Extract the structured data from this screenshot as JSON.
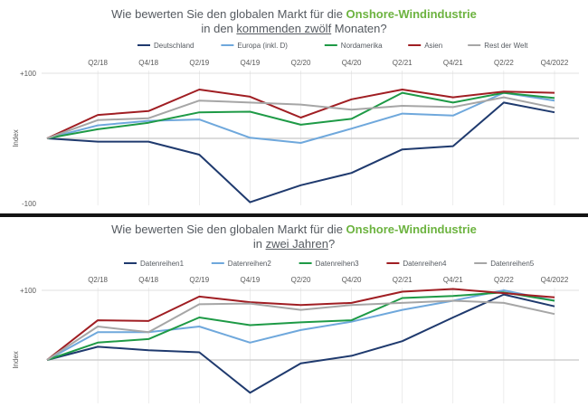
{
  "chart_data": [
    {
      "type": "line",
      "title": {
        "pre": "Wie bewerten Sie den globalen Markt für die ",
        "highlight": "Onshore-Windindustrie",
        "line2_pre": "in den ",
        "underlined": "kommenden zwölf",
        "line2_post": " Monaten?"
      },
      "ylabel": "Index",
      "x_ticks": [
        "Q2/18",
        "Q4/18",
        "Q2/19",
        "Q4/19",
        "Q2/20",
        "Q4/20",
        "Q2/21",
        "Q4/21",
        "Q2/22",
        "Q4/2022"
      ],
      "y_tick_labels": [
        "+100",
        "-100"
      ],
      "ylim": [
        -100,
        100
      ],
      "legend_position": "top",
      "series": [
        {
          "name": "Deutschland",
          "color": "#1f3a6e",
          "values": [
            0,
            -5,
            -5,
            -25,
            -98,
            -72,
            -53,
            -17,
            -12,
            55,
            40
          ]
        },
        {
          "name": "Europa (inkl. D)",
          "color": "#6fa8dc",
          "values": [
            0,
            20,
            27,
            29,
            1,
            -7,
            15,
            38,
            35,
            70,
            58
          ]
        },
        {
          "name": "Nordamerika",
          "color": "#1e9a46",
          "values": [
            0,
            14,
            24,
            40,
            41,
            21,
            30,
            70,
            55,
            70,
            62
          ]
        },
        {
          "name": "Asien",
          "color": "#a01e23",
          "values": [
            0,
            36,
            42,
            75,
            64,
            32,
            60,
            75,
            63,
            72,
            70
          ]
        },
        {
          "name": "Rest der Welt",
          "color": "#a6a6a6",
          "values": [
            0,
            28,
            31,
            58,
            55,
            52,
            44,
            50,
            48,
            63,
            47
          ]
        }
      ]
    },
    {
      "type": "line",
      "title": {
        "pre": "Wie bewerten Sie den globalen Markt für die ",
        "highlight": "Onshore-Windindustrie",
        "line2_pre": "in ",
        "underlined": "zwei Jahren",
        "line2_post": "?"
      },
      "ylabel": "Index",
      "x_ticks": [
        "Q2/18",
        "Q4/18",
        "Q2/19",
        "Q4/19",
        "Q2/20",
        "Q4/20",
        "Q2/21",
        "Q4/21",
        "Q2/22",
        "Q4/2022"
      ],
      "y_tick_labels": [
        "+100"
      ],
      "ylim": [
        0,
        100
      ],
      "legend_position": "top",
      "series": [
        {
          "name": "Datenreihen1",
          "color": "#1f3a6e",
          "values": [
            0,
            19,
            14,
            11,
            -47,
            -5,
            6,
            27,
            61,
            94,
            77
          ]
        },
        {
          "name": "Datenreihen2",
          "color": "#6fa8dc",
          "values": [
            0,
            40,
            40,
            48,
            25,
            43,
            55,
            72,
            85,
            100,
            85
          ]
        },
        {
          "name": "Datenreihen3",
          "color": "#1e9a46",
          "values": [
            0,
            25,
            30,
            61,
            50,
            54,
            57,
            89,
            92,
            97,
            85
          ]
        },
        {
          "name": "Datenreihen4",
          "color": "#a01e23",
          "values": [
            0,
            57,
            56,
            91,
            83,
            79,
            82,
            98,
            102,
            96,
            90
          ]
        },
        {
          "name": "Datenreihen5",
          "color": "#a6a6a6",
          "values": [
            0,
            48,
            40,
            80,
            81,
            72,
            79,
            82,
            85,
            82,
            66
          ]
        }
      ]
    }
  ]
}
